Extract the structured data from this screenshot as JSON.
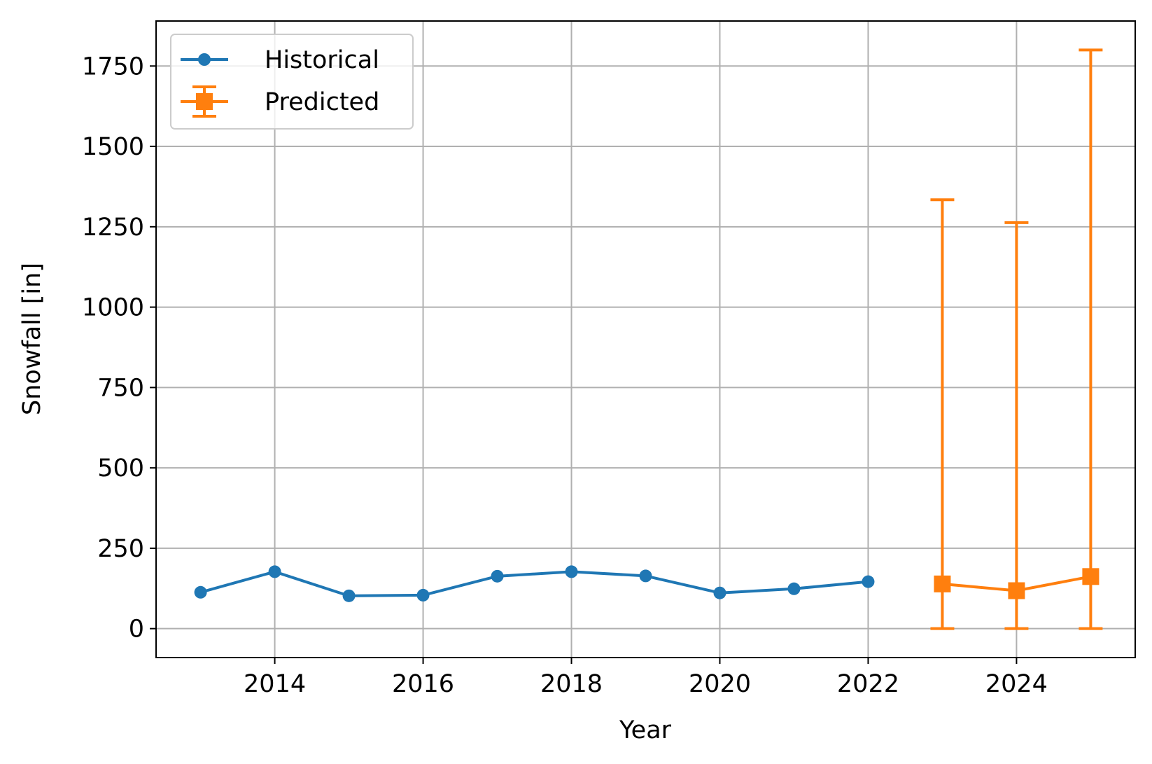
{
  "chart_data": {
    "type": "line",
    "title": "",
    "xlabel": "Year",
    "ylabel": "Snowfall [in]",
    "xlim": [
      2012.4,
      2025.6
    ],
    "ylim": [
      -90,
      1890
    ],
    "xticks": [
      2014,
      2016,
      2018,
      2020,
      2022,
      2024
    ],
    "yticks": [
      0,
      250,
      500,
      750,
      1000,
      1250,
      1500,
      1750
    ],
    "grid": true,
    "legend_position": "upper-left",
    "series": [
      {
        "name": "Historical",
        "color": "#1f77b4",
        "marker": "circle",
        "x": [
          2013,
          2014,
          2015,
          2016,
          2017,
          2018,
          2019,
          2020,
          2021,
          2022
        ],
        "y": [
          113,
          177,
          102,
          104,
          163,
          177,
          164,
          111,
          124,
          146
        ]
      },
      {
        "name": "Predicted",
        "color": "#ff7f0e",
        "marker": "square",
        "x": [
          2023,
          2024,
          2025
        ],
        "y": [
          139,
          118,
          162
        ],
        "error_lower": [
          0,
          0,
          0
        ],
        "error_upper": [
          1334,
          1263,
          1800
        ]
      }
    ]
  }
}
